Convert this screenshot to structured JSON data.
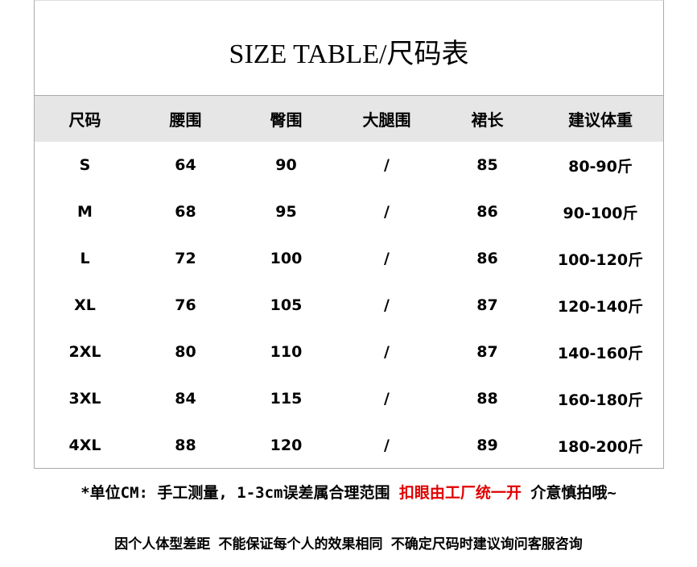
{
  "title": "SIZE TABLE/尺码表",
  "headers": [
    "尺码",
    "腰围",
    "臀围",
    "大腿围",
    "裙长",
    "建议体重"
  ],
  "rows": [
    [
      "S",
      "64",
      "90",
      "/",
      "85",
      "80-90斤"
    ],
    [
      "M",
      "68",
      "95",
      "/",
      "86",
      "90-100斤"
    ],
    [
      "L",
      "72",
      "100",
      "/",
      "86",
      "100-120斤"
    ],
    [
      "XL",
      "76",
      "105",
      "/",
      "87",
      "120-140斤"
    ],
    [
      "2XL",
      "80",
      "110",
      "/",
      "87",
      "140-160斤"
    ],
    [
      "3XL",
      "84",
      "115",
      "/",
      "88",
      "160-180斤"
    ],
    [
      "4XL",
      "88",
      "120",
      "/",
      "89",
      "180-200斤"
    ]
  ],
  "notes": {
    "line1_a": "*单位CM: 手工测量, 1-3cm误差属合理范围 ",
    "line1_red": "扣眼由工厂统一开",
    "line1_b": " 介意慎拍哦~",
    "line2": "因个人体型差距 不能保证每个人的效果相同 不确定尺码时建议询问客服咨询"
  },
  "colors": {
    "header_bg": "#e6e6e6",
    "highlight": "#e00000"
  }
}
